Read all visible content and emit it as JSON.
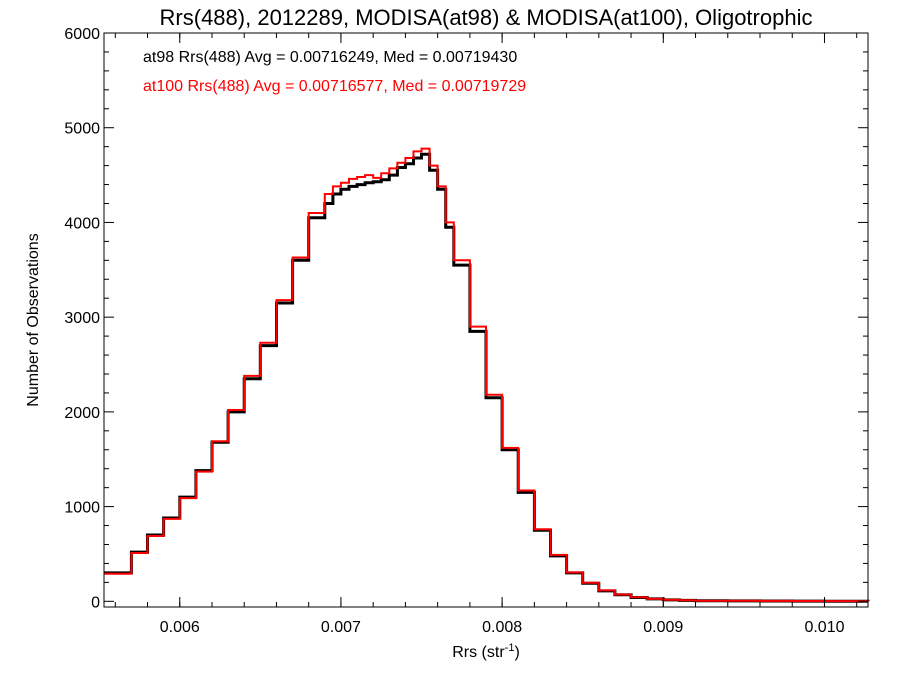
{
  "chart_data": {
    "type": "line",
    "title": "Rrs(488), 2012289, MODISA(at98) & MODISA(at100), Oligotrophic",
    "xlabel_main": "Rrs (str",
    "xlabel_sup": "-1",
    "xlabel_end": ")",
    "ylabel": "Number of Observations",
    "xlim": [
      0.00553,
      0.01027
    ],
    "ylim": [
      -60,
      6000
    ],
    "xticks": [
      0.006,
      0.007,
      0.008,
      0.009,
      0.01
    ],
    "xtick_labels": [
      "0.006",
      "0.007",
      "0.008",
      "0.009",
      "0.010"
    ],
    "yticks": [
      0,
      1000,
      2000,
      3000,
      4000,
      5000,
      6000
    ],
    "ytick_labels": [
      "0",
      "1000",
      "2000",
      "3000",
      "4000",
      "5000",
      "6000"
    ],
    "annotations": [
      {
        "text": "at98 Rrs(488) Avg = 0.00716249, Med = 0.00719430",
        "color": "#000000"
      },
      {
        "text": "at100 Rrs(488) Avg = 0.00716577, Med = 0.00719729",
        "color": "#ff0000"
      }
    ],
    "series": [
      {
        "color": "#000000",
        "x": [
          0.00553,
          0.0057,
          0.0058,
          0.0059,
          0.006,
          0.0061,
          0.0062,
          0.0063,
          0.0064,
          0.0065,
          0.0066,
          0.0067,
          0.0068,
          0.0069,
          0.00695,
          0.007,
          0.00705,
          0.0071,
          0.00715,
          0.0072,
          0.00725,
          0.0073,
          0.00735,
          0.0074,
          0.00745,
          0.0075,
          0.00755,
          0.0076,
          0.00765,
          0.0077,
          0.0078,
          0.0079,
          0.008,
          0.0081,
          0.0082,
          0.0083,
          0.0084,
          0.0085,
          0.0086,
          0.0087,
          0.0088,
          0.0089,
          0.009,
          0.0091,
          0.0092,
          0.0094,
          0.0096,
          0.0098,
          0.01,
          0.01027
        ],
        "y": [
          300,
          520,
          700,
          880,
          1100,
          1380,
          1680,
          2000,
          2350,
          2700,
          3150,
          3600,
          4050,
          4200,
          4300,
          4350,
          4380,
          4400,
          4420,
          4430,
          4450,
          4500,
          4580,
          4620,
          4680,
          4720,
          4550,
          4350,
          3950,
          3550,
          2850,
          2150,
          1600,
          1150,
          750,
          480,
          300,
          190,
          110,
          70,
          40,
          25,
          15,
          10,
          6,
          4,
          3,
          2,
          1,
          0
        ]
      },
      {
        "color": "#ff0000",
        "x": [
          0.00553,
          0.0057,
          0.0058,
          0.0059,
          0.006,
          0.0061,
          0.0062,
          0.0063,
          0.0064,
          0.0065,
          0.0066,
          0.0067,
          0.0068,
          0.0069,
          0.00695,
          0.007,
          0.00705,
          0.0071,
          0.00715,
          0.0072,
          0.00725,
          0.0073,
          0.00735,
          0.0074,
          0.00745,
          0.0075,
          0.00755,
          0.0076,
          0.00765,
          0.0077,
          0.0078,
          0.0079,
          0.008,
          0.0081,
          0.0082,
          0.0083,
          0.0084,
          0.0085,
          0.0086,
          0.0087,
          0.0088,
          0.0089,
          0.009,
          0.0091,
          0.0092,
          0.0094,
          0.0096,
          0.0098,
          0.01,
          0.01027
        ],
        "y": [
          290,
          510,
          690,
          870,
          1090,
          1370,
          1690,
          2020,
          2380,
          2730,
          3180,
          3630,
          4100,
          4300,
          4380,
          4420,
          4460,
          4480,
          4500,
          4470,
          4520,
          4570,
          4630,
          4680,
          4750,
          4780,
          4600,
          4380,
          4000,
          3600,
          2900,
          2180,
          1620,
          1170,
          760,
          490,
          305,
          195,
          115,
          72,
          42,
          26,
          16,
          11,
          7,
          5,
          4,
          3,
          2,
          1
        ]
      }
    ]
  }
}
